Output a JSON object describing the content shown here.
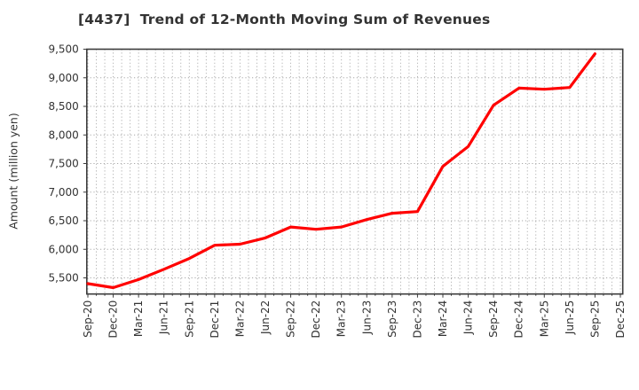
{
  "window": {
    "title": "[4437]  Trend of 12-Month Moving Sum of Revenues"
  },
  "chart_data": {
    "type": "line",
    "title": "[4437]  Trend of 12-Month Moving Sum of Revenues",
    "xlabel": "",
    "ylabel": "Amount (million yen)",
    "categories": [
      "Sep-20",
      "Dec-20",
      "Mar-21",
      "Jun-21",
      "Sep-21",
      "Dec-21",
      "Mar-22",
      "Jun-22",
      "Sep-22",
      "Dec-22",
      "Mar-23",
      "Jun-23",
      "Sep-23",
      "Dec-23",
      "Mar-24",
      "Jun-24",
      "Sep-24",
      "Dec-24",
      "Mar-25",
      "Jun-25",
      "Sep-25",
      "Dec-25"
    ],
    "series": [
      {
        "name": "12-Month Moving Sum of Revenues",
        "color": "#ff0000",
        "values": [
          5400,
          5330,
          5470,
          5650,
          5840,
          6070,
          6090,
          6200,
          6390,
          6350,
          6390,
          6520,
          6630,
          6660,
          7450,
          7800,
          8520,
          8820,
          8800,
          8830,
          9420,
          null
        ]
      }
    ],
    "yticks": [
      5500,
      6000,
      6500,
      7000,
      7500,
      8000,
      8500,
      9000,
      9500
    ],
    "ytick_labels": [
      "5,500",
      "6,000",
      "6,500",
      "7,000",
      "7,500",
      "8,000",
      "8,500",
      "9,000",
      "9,500"
    ],
    "ylim": [
      5218,
      9500
    ],
    "grid": "dotted",
    "legend_position": "none",
    "months_per_category": 3,
    "minor_grid_months_total": 63
  }
}
